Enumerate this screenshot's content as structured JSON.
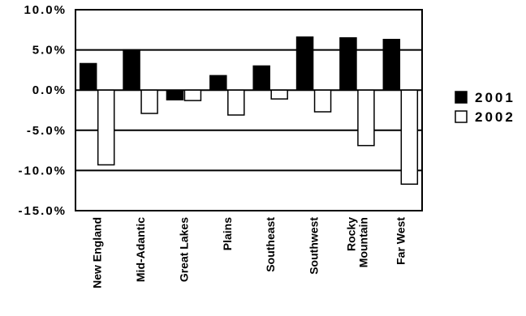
{
  "chart_data": {
    "type": "bar",
    "categories": [
      [
        "New England"
      ],
      [
        "Mid-Adantic"
      ],
      [
        "Great Lakes"
      ],
      [
        "Plains"
      ],
      [
        "Southeast"
      ],
      [
        "Southwest"
      ],
      [
        "Rocky",
        "Mountain"
      ],
      [
        "Far West"
      ]
    ],
    "series": [
      {
        "name": "2001",
        "values": [
          3.3,
          5.0,
          -1.2,
          1.8,
          3.0,
          6.6,
          6.5,
          6.3
        ],
        "color": "#000000"
      },
      {
        "name": "2002",
        "values": [
          -9.3,
          -2.9,
          -1.3,
          -3.1,
          -1.1,
          -2.7,
          -6.9,
          -11.7
        ],
        "color": "#ffffff"
      }
    ],
    "ylim": [
      -15,
      10
    ],
    "yticks": [
      10,
      5,
      0,
      -5,
      -10,
      -15
    ],
    "ytick_labels": [
      "10.0%",
      "5.0%",
      "0.0%",
      "-5.0%",
      "-10.0%",
      "-15.0%"
    ],
    "grid": true,
    "legend": "right",
    "title": "",
    "xlabel": "",
    "ylabel": ""
  }
}
